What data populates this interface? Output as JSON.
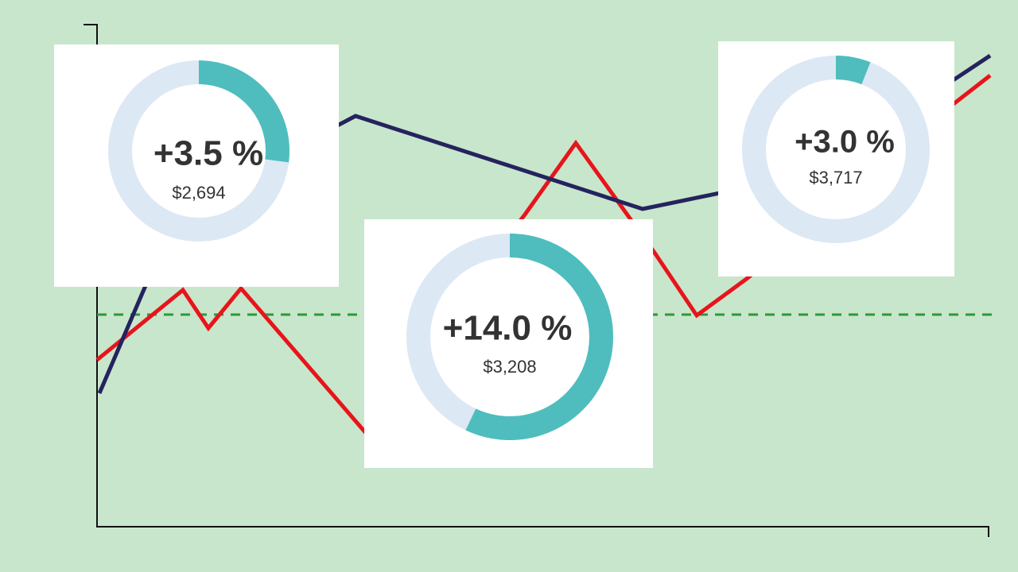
{
  "cards": [
    {
      "change": "+3.5 %",
      "amount": "$2,694",
      "ring_percent": 27
    },
    {
      "change": "+14.0 %",
      "amount": "$3,208",
      "ring_percent": 57
    },
    {
      "change": "+3.0 %",
      "amount": "$3,717",
      "ring_percent": 6
    }
  ]
}
